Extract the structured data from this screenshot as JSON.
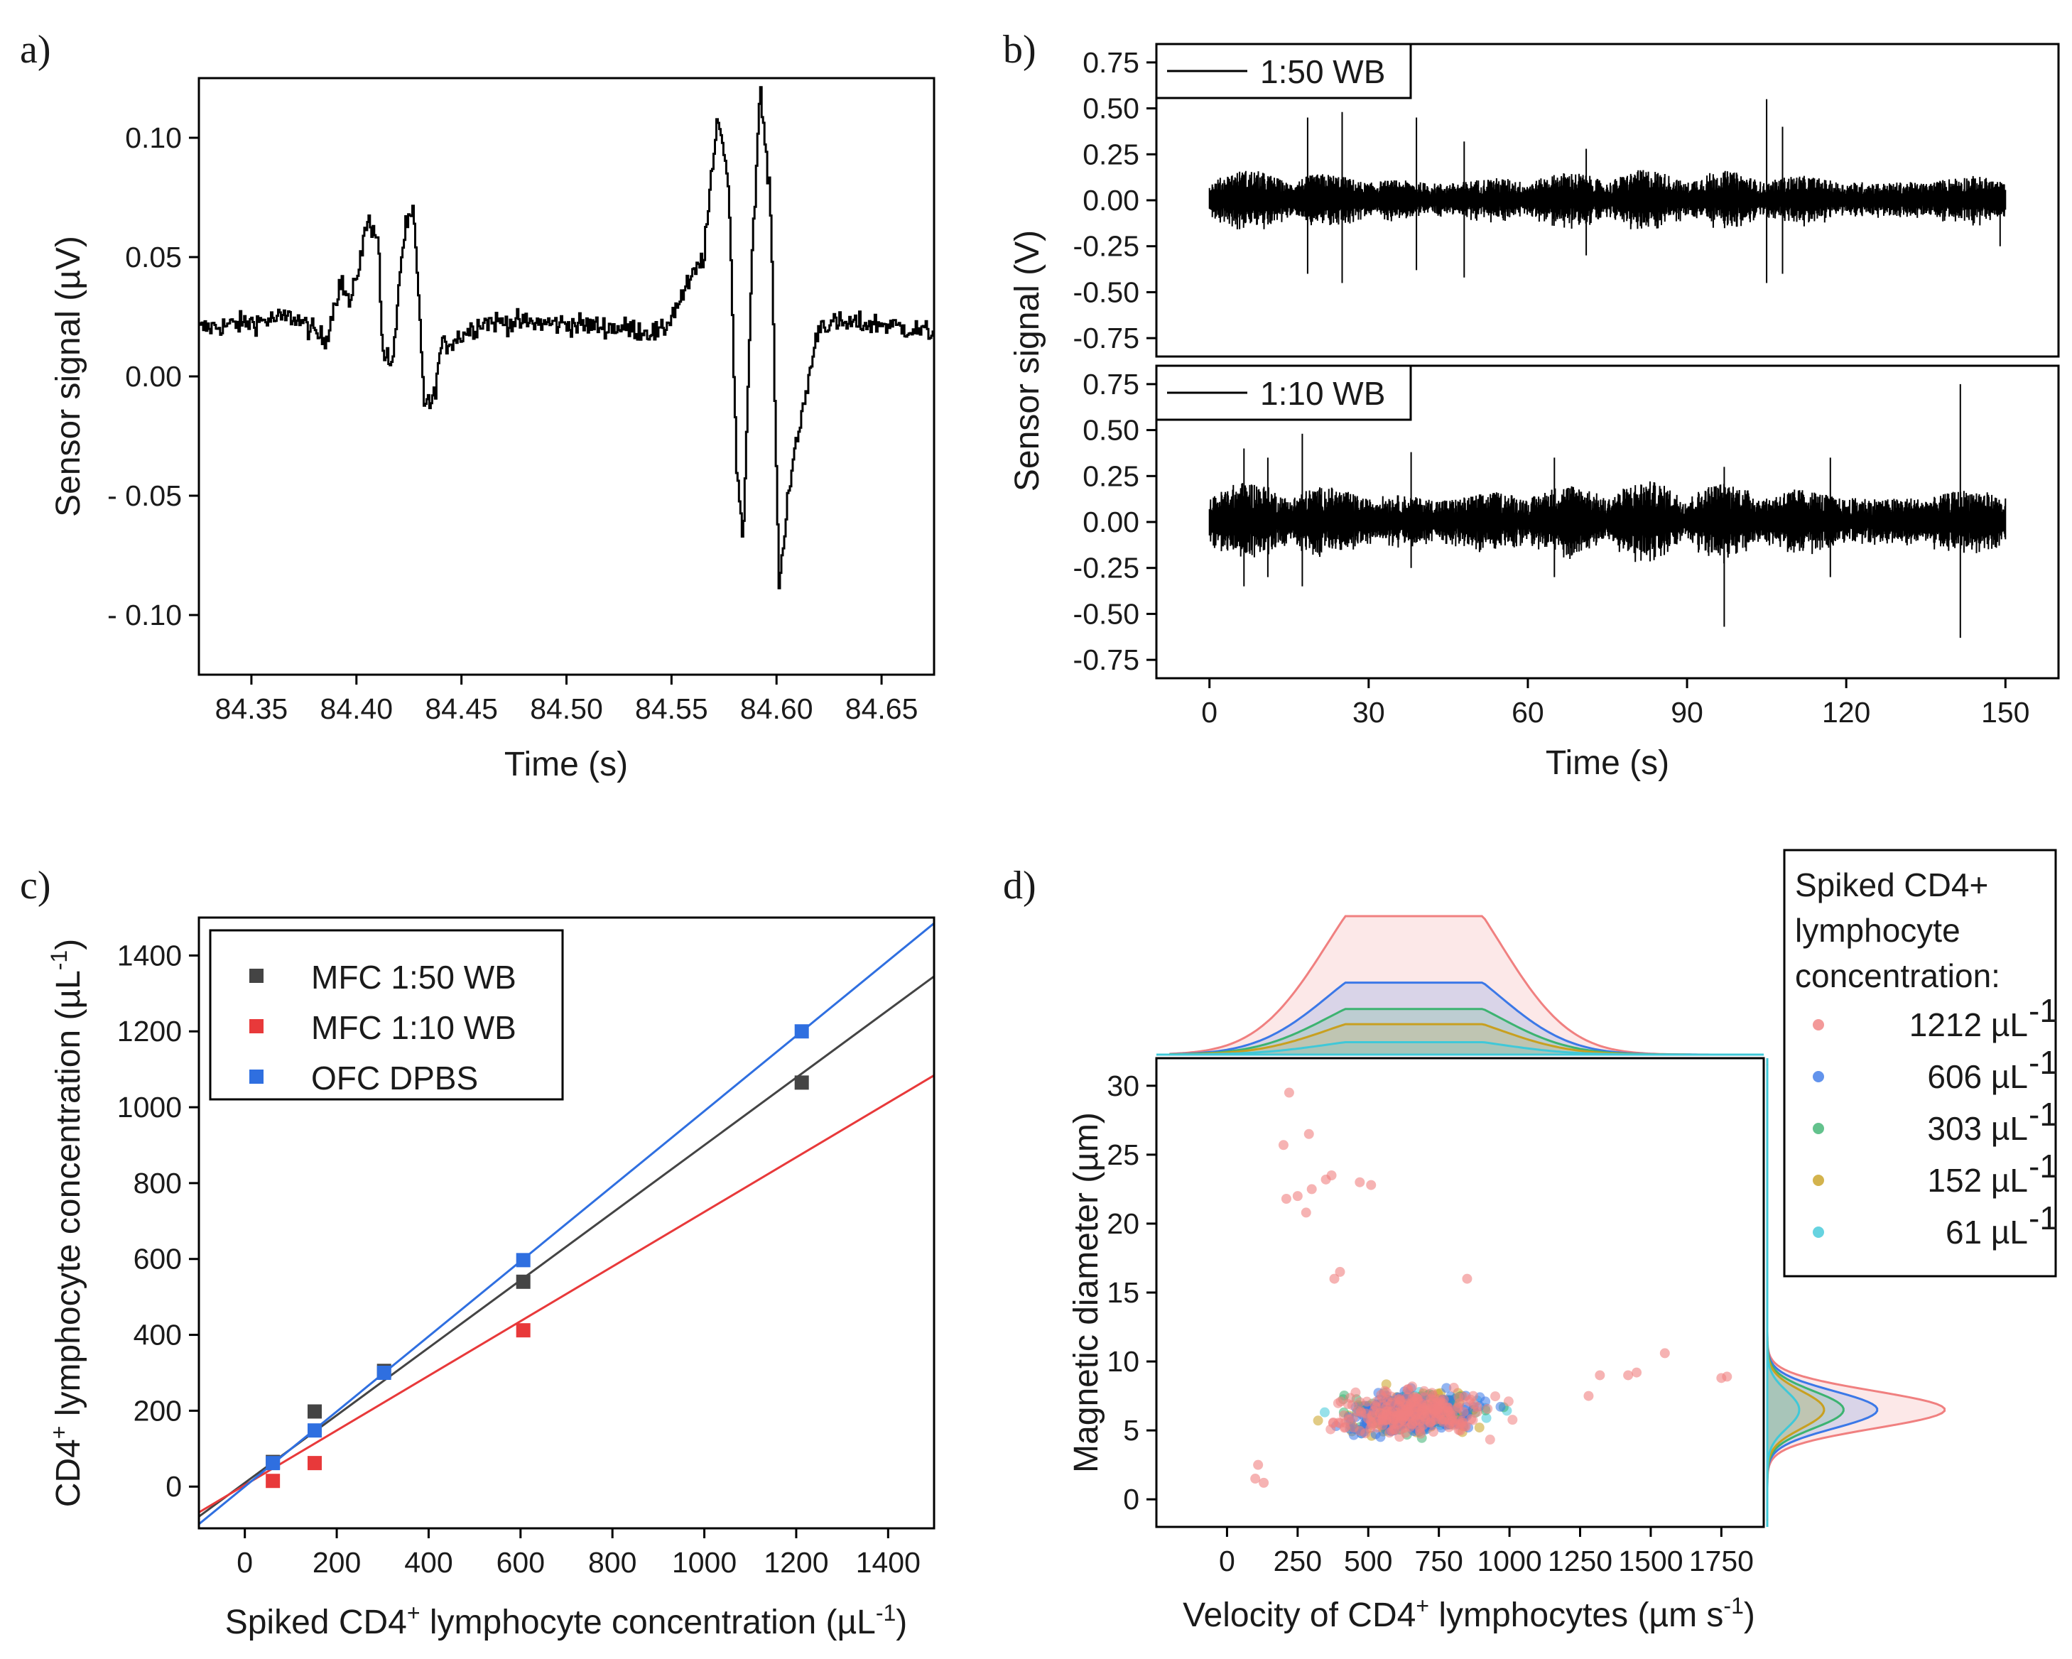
{
  "chart_data": [
    {
      "panel": "a)",
      "type": "line",
      "xlabel": "Time (s)",
      "ylabel": "Sensor signal (µV)",
      "xlim": [
        84.325,
        84.675
      ],
      "ylim": [
        -0.125,
        0.125
      ],
      "xticks": [
        84.35,
        84.4,
        84.45,
        84.5,
        84.55,
        84.6,
        84.65
      ],
      "xtick_labels": [
        "84.35",
        "84.40",
        "84.45",
        "84.50",
        "84.55",
        "84.60",
        "84.65"
      ],
      "yticks": [
        0.1,
        0.05,
        0.0,
        -0.05,
        -0.1
      ],
      "ytick_labels": [
        "0.10",
        "0.05",
        "0.00",
        "- 0.05",
        "- 0.10"
      ],
      "series": [
        {
          "name": "signal",
          "x": [
            84.325,
            84.37,
            84.385,
            84.392,
            84.397,
            84.405,
            84.41,
            84.412,
            84.417,
            84.42,
            84.423,
            84.427,
            84.432,
            84.436,
            84.44,
            84.46,
            84.5,
            84.53,
            84.545,
            84.565,
            84.572,
            84.577,
            84.581,
            84.584,
            84.588,
            84.592,
            84.597,
            84.601,
            84.605,
            84.612,
            84.62,
            84.65,
            84.675
          ],
          "y": [
            0.02,
            0.025,
            0.015,
            0.04,
            0.03,
            0.065,
            0.06,
            0.012,
            0.003,
            0.04,
            0.062,
            0.068,
            -0.01,
            -0.012,
            0.012,
            0.023,
            0.022,
            0.02,
            0.018,
            0.05,
            0.11,
            0.08,
            -0.045,
            -0.065,
            0.05,
            0.12,
            0.07,
            -0.09,
            -0.05,
            -0.015,
            0.022,
            0.022,
            0.018
          ]
        }
      ]
    },
    {
      "panel": "b)",
      "type": "line",
      "xlabel": "Time (s)",
      "ylabel": "Sensor signal (V)",
      "xlim": [
        -10,
        160
      ],
      "ylim": [
        -0.85,
        0.85
      ],
      "xticks": [
        0,
        30,
        60,
        90,
        120,
        150
      ],
      "xtick_labels": [
        "0",
        "30",
        "60",
        "90",
        "120",
        "150"
      ],
      "yticks": [
        0.75,
        0.5,
        0.25,
        0.0,
        -0.25,
        -0.5,
        -0.75
      ],
      "ytick_labels": [
        "0.75",
        "0.50",
        "0.25",
        "0.00",
        "-0.25",
        "-0.50",
        "-0.75"
      ],
      "subplots": [
        {
          "legend": "1:50 WB",
          "noise_amplitude": 0.12,
          "spikes": [
            [
              18.5,
              0.45,
              -0.4
            ],
            [
              25,
              0.48,
              -0.45
            ],
            [
              39,
              0.45,
              -0.38
            ],
            [
              48,
              0.32,
              -0.42
            ],
            [
              71,
              0.28,
              -0.3
            ],
            [
              105,
              0.55,
              -0.45
            ],
            [
              108,
              0.4,
              -0.4
            ],
            [
              149,
              0.1,
              -0.25
            ]
          ]
        },
        {
          "legend": "1:10 WB",
          "noise_amplitude": 0.16,
          "spikes": [
            [
              6.5,
              0.4,
              -0.35
            ],
            [
              11,
              0.35,
              -0.3
            ],
            [
              17.5,
              0.48,
              -0.35
            ],
            [
              38,
              0.38,
              -0.25
            ],
            [
              65,
              0.35,
              -0.3
            ],
            [
              97,
              0.3,
              -0.57
            ],
            [
              117,
              0.35,
              -0.3
            ],
            [
              141.5,
              0.75,
              -0.63
            ]
          ]
        }
      ]
    },
    {
      "panel": "c)",
      "type": "scatter",
      "xlabel_parts": [
        "Spiked CD4",
        "+",
        " lymphocyte concentration (µL",
        "-1",
        ")"
      ],
      "ylabel_parts": [
        "CD4",
        "+",
        " lymphocyte concentration (µL",
        "-1",
        ")"
      ],
      "xlim": [
        -100,
        1500
      ],
      "ylim": [
        -110,
        1500
      ],
      "xticks": [
        0,
        200,
        400,
        600,
        800,
        1000,
        1200,
        1400
      ],
      "xtick_labels": [
        "0",
        "200",
        "400",
        "600",
        "800",
        "1000",
        "1200",
        "1400"
      ],
      "yticks": [
        0,
        200,
        400,
        600,
        800,
        1000,
        1200,
        1400
      ],
      "ytick_labels": [
        "0",
        "200",
        "400",
        "600",
        "800",
        "1000",
        "1200",
        "1400"
      ],
      "series": [
        {
          "name": "MFC 1:50 WB",
          "color": "#444444",
          "x": [
            61,
            152,
            303,
            606,
            1212
          ],
          "y": [
            65,
            198,
            305,
            540,
            1065
          ],
          "fit": [
            0.89,
            10
          ]
        },
        {
          "name": "MFC 1:10 WB",
          "color": "#e8393a",
          "x": [
            61,
            152,
            606
          ],
          "y": [
            15,
            62,
            412
          ],
          "fit": [
            0.72,
            4
          ]
        },
        {
          "name": "OFC DPBS",
          "color": "#2f6fe0",
          "x": [
            61,
            152,
            303,
            606,
            1212
          ],
          "y": [
            62,
            148,
            300,
            597,
            1200
          ],
          "fit": [
            0.99,
            0
          ]
        }
      ]
    },
    {
      "panel": "d)",
      "type": "scatter",
      "xlabel_parts": [
        "Velocity of CD4",
        "+",
        " lymphocytes (µm s",
        "-1",
        ")"
      ],
      "ylabel": "Magnetic diameter (µm)",
      "xlim": [
        -250,
        1900
      ],
      "ylim": [
        -2,
        32
      ],
      "xticks": [
        0,
        250,
        500,
        750,
        1000,
        1250,
        1500,
        1750
      ],
      "xtick_labels": [
        "0",
        "250",
        "500",
        "750",
        "1000",
        "1250",
        "1500",
        "1750"
      ],
      "yticks": [
        0,
        5,
        10,
        15,
        20,
        25,
        30
      ],
      "ytick_labels": [
        "0",
        "5",
        "10",
        "15",
        "20",
        "25",
        "30"
      ],
      "legend_title": [
        "Spiked CD4+",
        "lymphocyte",
        "concentration:"
      ],
      "series": [
        {
          "name": "1212 µL-1",
          "label": "1212 µL",
          "color": "#f08080",
          "points": 240,
          "marginal_x_peak": 1.0,
          "marginal_y_peak": 1.0
        },
        {
          "name": "606 µL-1",
          "label": "606 µL",
          "color": "#3b78e7",
          "points": 170,
          "marginal_x_peak": 0.52,
          "marginal_y_peak": 0.62
        },
        {
          "name": "303 µL-1",
          "label": "303 µL",
          "color": "#3cb371",
          "points": 120,
          "marginal_x_peak": 0.33,
          "marginal_y_peak": 0.43
        },
        {
          "name": "152 µL-1",
          "label": "152 µL",
          "color": "#c8a020",
          "points": 90,
          "marginal_x_peak": 0.22,
          "marginal_y_peak": 0.32
        },
        {
          "name": "61 µL-1",
          "label": "61 µL",
          "color": "#40c8d8",
          "points": 60,
          "marginal_x_peak": 0.09,
          "marginal_y_peak": 0.18
        }
      ],
      "outliers": [
        [
          220,
          29.5
        ],
        [
          200,
          25.7
        ],
        [
          290,
          26.5
        ],
        [
          210,
          21.8
        ],
        [
          250,
          22.0
        ],
        [
          280,
          20.8
        ],
        [
          300,
          22.5
        ],
        [
          370,
          23.5
        ],
        [
          350,
          23.2
        ],
        [
          470,
          23.0
        ],
        [
          510,
          22.8
        ],
        [
          380,
          16.0
        ],
        [
          400,
          16.5
        ],
        [
          850,
          16.0
        ],
        [
          1280,
          7.5
        ],
        [
          1420,
          9.0
        ],
        [
          1550,
          10.6
        ],
        [
          1750,
          8.8
        ],
        [
          1770,
          8.9
        ],
        [
          1450,
          9.2
        ],
        [
          1320,
          9.0
        ],
        [
          100,
          1.5
        ],
        [
          130,
          1.2
        ],
        [
          110,
          2.5
        ]
      ]
    }
  ]
}
